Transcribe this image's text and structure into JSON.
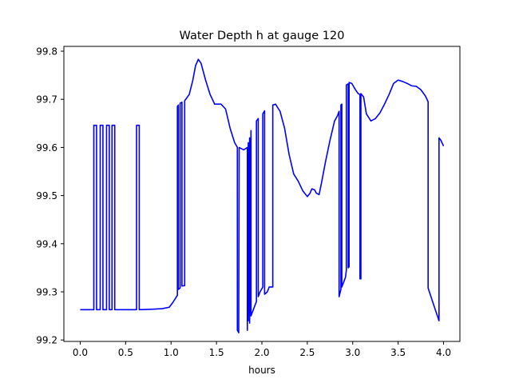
{
  "chart_data": {
    "type": "line",
    "title": "Water Depth h at gauge 120",
    "xlabel": "hours",
    "ylabel": "",
    "xlim": [
      -0.18,
      4.18
    ],
    "ylim": [
      99.197,
      99.81
    ],
    "xticks": [
      0.0,
      0.5,
      1.0,
      1.5,
      2.0,
      2.5,
      3.0,
      3.5,
      4.0
    ],
    "xtick_labels": [
      "0.0",
      "0.5",
      "1.0",
      "1.5",
      "2.0",
      "2.5",
      "3.0",
      "3.5",
      "4.0"
    ],
    "yticks": [
      99.2,
      99.3,
      99.4,
      99.5,
      99.6,
      99.7,
      99.8
    ],
    "ytick_labels": [
      "99.2",
      "99.3",
      "99.4",
      "99.5",
      "99.6",
      "99.7",
      "99.8"
    ],
    "grid": false,
    "legend": "none",
    "series": [
      {
        "color": "#0000ff",
        "points": [
          [
            0.0,
            99.263
          ],
          [
            0.15,
            99.263
          ],
          [
            0.15,
            99.646
          ],
          [
            0.18,
            99.646
          ],
          [
            0.18,
            99.263
          ],
          [
            0.22,
            99.263
          ],
          [
            0.22,
            99.646
          ],
          [
            0.25,
            99.646
          ],
          [
            0.25,
            99.263
          ],
          [
            0.29,
            99.263
          ],
          [
            0.29,
            99.646
          ],
          [
            0.32,
            99.646
          ],
          [
            0.32,
            99.263
          ],
          [
            0.35,
            99.263
          ],
          [
            0.35,
            99.646
          ],
          [
            0.38,
            99.646
          ],
          [
            0.38,
            99.263
          ],
          [
            0.62,
            99.263
          ],
          [
            0.62,
            99.646
          ],
          [
            0.65,
            99.646
          ],
          [
            0.65,
            99.263
          ],
          [
            0.8,
            99.264
          ],
          [
            0.9,
            99.265
          ],
          [
            0.98,
            99.268
          ],
          [
            1.02,
            99.278
          ],
          [
            1.06,
            99.29
          ],
          [
            1.07,
            99.293
          ],
          [
            1.07,
            99.685
          ],
          [
            1.08,
            99.688
          ],
          [
            1.08,
            99.305
          ],
          [
            1.1,
            99.308
          ],
          [
            1.1,
            99.692
          ],
          [
            1.12,
            99.694
          ],
          [
            1.12,
            99.312
          ],
          [
            1.15,
            99.313
          ],
          [
            1.15,
            99.697
          ],
          [
            1.2,
            99.71
          ],
          [
            1.24,
            99.74
          ],
          [
            1.27,
            99.77
          ],
          [
            1.3,
            99.783
          ],
          [
            1.33,
            99.775
          ],
          [
            1.38,
            99.74
          ],
          [
            1.43,
            99.71
          ],
          [
            1.48,
            99.69
          ],
          [
            1.55,
            99.69
          ],
          [
            1.6,
            99.68
          ],
          [
            1.65,
            99.64
          ],
          [
            1.7,
            99.61
          ],
          [
            1.73,
            99.6
          ],
          [
            1.73,
            99.22
          ],
          [
            1.745,
            99.215
          ],
          [
            1.75,
            99.6
          ],
          [
            1.8,
            99.595
          ],
          [
            1.84,
            99.6
          ],
          [
            1.84,
            99.22
          ],
          [
            1.85,
            99.61
          ],
          [
            1.85,
            99.24
          ],
          [
            1.865,
            99.62
          ],
          [
            1.865,
            99.235
          ],
          [
            1.88,
            99.635
          ],
          [
            1.88,
            99.25
          ],
          [
            1.9,
            99.26
          ],
          [
            1.94,
            99.28
          ],
          [
            1.94,
            99.655
          ],
          [
            1.96,
            99.66
          ],
          [
            1.96,
            99.29
          ],
          [
            1.98,
            99.3
          ],
          [
            2.01,
            99.31
          ],
          [
            2.01,
            99.67
          ],
          [
            2.03,
            99.676
          ],
          [
            2.03,
            99.295
          ],
          [
            2.06,
            99.3
          ],
          [
            2.08,
            99.31
          ],
          [
            2.12,
            99.31
          ],
          [
            2.12,
            99.688
          ],
          [
            2.15,
            99.69
          ],
          [
            2.2,
            99.675
          ],
          [
            2.25,
            99.64
          ],
          [
            2.3,
            99.585
          ],
          [
            2.35,
            99.545
          ],
          [
            2.4,
            99.53
          ],
          [
            2.45,
            99.51
          ],
          [
            2.5,
            99.498
          ],
          [
            2.53,
            99.505
          ],
          [
            2.55,
            99.514
          ],
          [
            2.58,
            99.512
          ],
          [
            2.6,
            99.505
          ],
          [
            2.63,
            99.502
          ],
          [
            2.66,
            99.53
          ],
          [
            2.7,
            99.57
          ],
          [
            2.75,
            99.615
          ],
          [
            2.8,
            99.655
          ],
          [
            2.83,
            99.665
          ],
          [
            2.85,
            99.675
          ],
          [
            2.85,
            99.29
          ],
          [
            2.87,
            99.305
          ],
          [
            2.87,
            99.688
          ],
          [
            2.88,
            99.69
          ],
          [
            2.88,
            99.31
          ],
          [
            2.92,
            99.33
          ],
          [
            2.93,
            99.345
          ],
          [
            2.93,
            99.73
          ],
          [
            2.95,
            99.732
          ],
          [
            2.95,
            99.35
          ],
          [
            2.96,
            99.352
          ],
          [
            2.96,
            99.735
          ],
          [
            2.99,
            99.733
          ],
          [
            3.03,
            99.72
          ],
          [
            3.06,
            99.712
          ],
          [
            3.08,
            99.71
          ],
          [
            3.08,
            99.327
          ],
          [
            3.09,
            99.327
          ],
          [
            3.09,
            99.712
          ],
          [
            3.12,
            99.705
          ],
          [
            3.15,
            99.67
          ],
          [
            3.2,
            99.655
          ],
          [
            3.25,
            99.66
          ],
          [
            3.3,
            99.672
          ],
          [
            3.35,
            99.69
          ],
          [
            3.4,
            99.71
          ],
          [
            3.45,
            99.733
          ],
          [
            3.5,
            99.74
          ],
          [
            3.55,
            99.737
          ],
          [
            3.6,
            99.733
          ],
          [
            3.65,
            99.728
          ],
          [
            3.7,
            99.727
          ],
          [
            3.75,
            99.72
          ],
          [
            3.8,
            99.707
          ],
          [
            3.83,
            99.695
          ],
          [
            3.83,
            99.308
          ],
          [
            3.9,
            99.268
          ],
          [
            3.95,
            99.24
          ],
          [
            3.95,
            99.62
          ],
          [
            3.97,
            99.615
          ],
          [
            4.0,
            99.603
          ]
        ]
      }
    ]
  }
}
